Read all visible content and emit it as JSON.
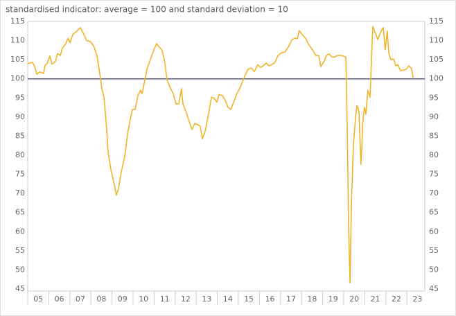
{
  "chart_data": {
    "type": "line",
    "title": "standardised indicator: average = 100 and standard deviation = 10",
    "x": [
      2005,
      2005.23,
      2005.33,
      2005.43,
      2005.56,
      2005.76,
      2005.82,
      2005.92,
      2006.05,
      2006.15,
      2006.32,
      2006.41,
      2006.55,
      2006.64,
      2006.81,
      2006.91,
      2007.01,
      2007.14,
      2007.34,
      2007.5,
      2007.63,
      2007.8,
      2007.96,
      2008.13,
      2008.29,
      2008.39,
      2008.52,
      2008.62,
      2008.72,
      2008.82,
      2008.95,
      2009.08,
      2009.21,
      2009.31,
      2009.44,
      2009.61,
      2009.74,
      2009.87,
      2009.97,
      2010.1,
      2010.23,
      2010.36,
      2010.43,
      2010.53,
      2010.66,
      2010.86,
      2010.99,
      2011.12,
      2011.25,
      2011.38,
      2011.51,
      2011.61,
      2011.74,
      2011.91,
      2012.04,
      2012.17,
      2012.3,
      2012.37,
      2012.5,
      2012.63,
      2012.8,
      2012.93,
      2013.06,
      2013.19,
      2013.29,
      2013.42,
      2013.55,
      2013.72,
      2013.85,
      2013.98,
      2014.08,
      2014.24,
      2014.38,
      2014.51,
      2014.64,
      2014.77,
      2014.93,
      2015.1,
      2015.3,
      2015.46,
      2015.62,
      2015.76,
      2015.92,
      2016.05,
      2016.18,
      2016.32,
      2016.45,
      2016.58,
      2016.74,
      2016.88,
      2017.04,
      2017.2,
      2017.37,
      2017.53,
      2017.66,
      2017.8,
      2017.89,
      2018.06,
      2018.19,
      2018.36,
      2018.52,
      2018.68,
      2018.82,
      2018.91,
      2019.08,
      2019.18,
      2019.31,
      2019.44,
      2019.57,
      2019.7,
      2019.9,
      2020.1,
      2020.16,
      2020.23,
      2020.3,
      2020.36,
      2020.46,
      2020.56,
      2020.63,
      2020.72,
      2020.82,
      2020.92,
      2020.99,
      2021.05,
      2021.15,
      2021.25,
      2021.38,
      2021.51,
      2021.61,
      2021.78,
      2021.88,
      2021.97,
      2022.07,
      2022.14,
      2022.24,
      2022.37,
      2022.47,
      2022.57,
      2022.7,
      2022.86,
      2022.96,
      2023.09,
      2023.22,
      2023.29
    ],
    "series": [
      {
        "color": "#f0b429",
        "values": [
          104,
          104.3,
          103.2,
          101.2,
          101.8,
          101.4,
          103.5,
          104,
          106,
          103.8,
          104.6,
          106.6,
          106.1,
          108,
          109.2,
          110.6,
          109.5,
          111.6,
          112.5,
          113.4,
          112,
          110,
          109.8,
          108.6,
          106,
          102.5,
          97.4,
          95.2,
          88.9,
          80.7,
          76.2,
          73.1,
          69.6,
          71.2,
          75.6,
          79.8,
          85.6,
          89.4,
          92,
          92,
          95.6,
          97,
          96.1,
          98.8,
          102.5,
          105.7,
          107.6,
          109.2,
          108.3,
          107.4,
          104.3,
          99.8,
          97.9,
          96.1,
          93.4,
          93.4,
          97.4,
          93.4,
          91.6,
          89.4,
          86.7,
          88.3,
          88,
          87.6,
          84.3,
          86.2,
          89.8,
          95.2,
          94.9,
          93.9,
          95.9,
          95.6,
          94.3,
          92.5,
          92,
          93.8,
          96.1,
          97.9,
          100.7,
          102.5,
          102.8,
          101.9,
          103.7,
          103,
          103.4,
          104.1,
          103.4,
          103.7,
          104.3,
          106.1,
          106.8,
          107,
          108.3,
          110.1,
          110.6,
          110.5,
          112.6,
          111.4,
          110.6,
          108.8,
          107.6,
          106.1,
          106.1,
          103.2,
          104.7,
          106.1,
          106.5,
          105.7,
          105.7,
          106.1,
          106.1,
          105.7,
          89.8,
          62.5,
          46.6,
          66.2,
          82.5,
          89.8,
          93,
          91.6,
          77.6,
          89.8,
          92.5,
          90.7,
          97,
          95.2,
          113.7,
          111.9,
          110.3,
          112.5,
          113.4,
          107.6,
          112.5,
          106.7,
          105,
          105.2,
          103.4,
          103.7,
          102.1,
          102.3,
          102.5,
          103.4,
          102.7,
          100.3
        ]
      }
    ],
    "reference_line": 100,
    "reference_color": "#5c5a8e",
    "xlim": [
      2005,
      2023.85
    ],
    "xticks": [
      {
        "value": 2005.5,
        "label": "05"
      },
      {
        "value": 2006.5,
        "label": "06"
      },
      {
        "value": 2007.5,
        "label": "07"
      },
      {
        "value": 2008.5,
        "label": "08"
      },
      {
        "value": 2009.5,
        "label": "09"
      },
      {
        "value": 2010.5,
        "label": "10"
      },
      {
        "value": 2011.5,
        "label": "11"
      },
      {
        "value": 2012.5,
        "label": "12"
      },
      {
        "value": 2013.5,
        "label": "13"
      },
      {
        "value": 2014.5,
        "label": "14"
      },
      {
        "value": 2015.5,
        "label": "15"
      },
      {
        "value": 2016.5,
        "label": "16"
      },
      {
        "value": 2017.5,
        "label": "17"
      },
      {
        "value": 2018.5,
        "label": "18"
      },
      {
        "value": 2019.5,
        "label": "19"
      },
      {
        "value": 2020.5,
        "label": "20"
      },
      {
        "value": 2021.5,
        "label": "21"
      },
      {
        "value": 2022.5,
        "label": "22"
      },
      {
        "value": 2023.5,
        "label": "23"
      }
    ],
    "ylim": [
      45,
      115
    ],
    "yticks": [
      45,
      50,
      55,
      60,
      65,
      70,
      75,
      80,
      85,
      90,
      95,
      100,
      105,
      110,
      115
    ],
    "y2lim": [
      45,
      115
    ],
    "y2ticks": [
      45,
      50,
      55,
      60,
      65,
      70,
      75,
      80,
      85,
      90,
      95,
      100,
      105,
      110,
      115
    ]
  }
}
